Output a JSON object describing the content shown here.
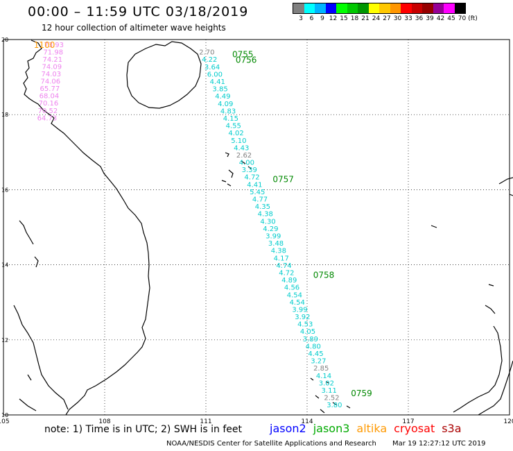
{
  "header": {
    "title": "00:00 – 11:59 UTC 03/18/2019",
    "subtitle": "12 hour collection of altimeter wave heights"
  },
  "legend": {
    "unit": "(ft)",
    "bins": [
      {
        "label": "3",
        "color": "#808080"
      },
      {
        "label": "6",
        "color": "#00ffff"
      },
      {
        "label": "9",
        "color": "#00b4ff"
      },
      {
        "label": "12",
        "color": "#0000ff"
      },
      {
        "label": "15",
        "color": "#00ff00"
      },
      {
        "label": "18",
        "color": "#00c800"
      },
      {
        "label": "21",
        "color": "#009600"
      },
      {
        "label": "24",
        "color": "#ffff00"
      },
      {
        "label": "27",
        "color": "#ffc800"
      },
      {
        "label": "30",
        "color": "#ff9600"
      },
      {
        "label": "33",
        "color": "#ff0000"
      },
      {
        "label": "36",
        "color": "#c80000"
      },
      {
        "label": "39",
        "color": "#960000"
      },
      {
        "label": "42",
        "color": "#960096"
      },
      {
        "label": "45",
        "color": "#ff00ff"
      },
      {
        "label": "70",
        "color": "#000000"
      }
    ]
  },
  "map": {
    "lon_range": [
      105,
      120
    ],
    "lat_range": [
      10,
      20
    ],
    "x_ticks": [
      "105",
      "108",
      "111",
      "114",
      "117",
      "120"
    ],
    "y_ticks": [
      "10",
      "12",
      "14",
      "16",
      "18",
      "20"
    ],
    "time_labels": [
      {
        "text": "1100",
        "lon": 105.9,
        "lat": 19.78,
        "color": "#ff9900"
      },
      {
        "text": "0755",
        "lon": 111.78,
        "lat": 19.53,
        "color": "#008800"
      },
      {
        "text": "0756",
        "lon": 111.88,
        "lat": 19.38,
        "color": "#008800"
      },
      {
        "text": "0757",
        "lon": 112.98,
        "lat": 16.2,
        "color": "#008800"
      },
      {
        "text": "0758",
        "lon": 114.18,
        "lat": 13.65,
        "color": "#008800"
      },
      {
        "text": "0759",
        "lon": 115.3,
        "lat": 10.5,
        "color": "#008800"
      }
    ],
    "tracks": [
      {
        "satellite": "altika",
        "color": "#ee82ee",
        "start": {
          "lon": 106.2,
          "lat": 19.8
        },
        "end": {
          "lon": 106.0,
          "lat": 17.85
        },
        "values": [
          "73.93",
          "71.98",
          "74.21",
          "74.09",
          "74.03",
          "74.06",
          "65.77",
          "68.04",
          "70.16",
          "70.52",
          "64.73"
        ]
      },
      {
        "satellite": "jason3",
        "color": "#00cccc",
        "start": {
          "lon": 110.8,
          "lat": 19.6
        },
        "end": {
          "lon": 114.58,
          "lat": 10.2
        },
        "values": [
          "2.70",
          "4.22",
          "3.64",
          "6.00",
          "4.41",
          "3.85",
          "4.49",
          "4.09",
          "4.83",
          "4.15",
          "4.55",
          "4.02",
          "5.10",
          "4.43",
          "2.62",
          "4.00",
          "3.39",
          "4.72",
          "4.41",
          "5.45",
          "4.77",
          "4.35",
          "4.38",
          "4.30",
          "4.29",
          "3.99",
          "3.48",
          "4.38",
          "4.17",
          "4.74",
          "4.72",
          "4.89",
          "4.56",
          "4.54",
          "4.54",
          "3.99",
          "3.92",
          "4.53",
          "4.05",
          "3.89",
          "4.80",
          "4.45",
          "3.27",
          "2.85",
          "4.14",
          "3.02",
          "3.11",
          "2.52",
          "3.80"
        ]
      }
    ]
  },
  "footer": {
    "note": "note: 1) Time is in UTC; 2) SWH is in feet",
    "satellites": [
      {
        "name": "jason2",
        "color": "#0000ff"
      },
      {
        "name": "jason3",
        "color": "#00aa00"
      },
      {
        "name": "altika",
        "color": "#ff9900"
      },
      {
        "name": "cryosat",
        "color": "#ff0000"
      },
      {
        "name": "s3a",
        "color": "#aa0000"
      }
    ],
    "credit": "NOAA/NESDIS Center for Satellite Applications and Research",
    "timestamp": "Mar 19 12:27:12 UTC 2019"
  }
}
